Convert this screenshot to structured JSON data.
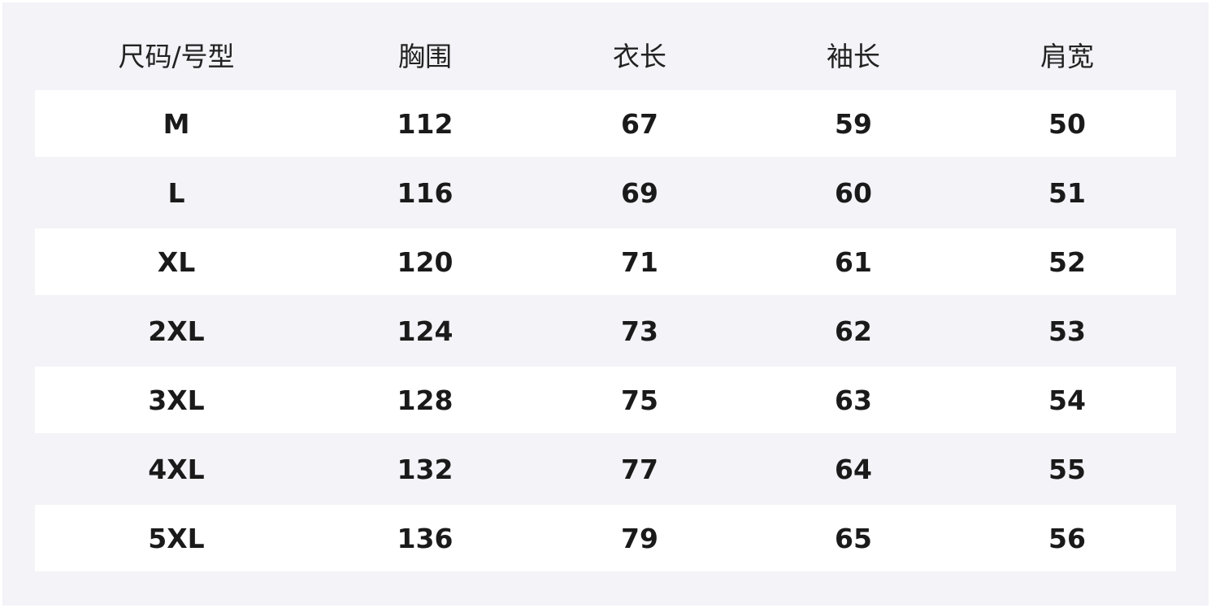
{
  "table": {
    "headers": [
      "尺码/号型",
      "胸围",
      "衣长",
      "袖长",
      "肩宽"
    ],
    "rows": [
      [
        "M",
        "112",
        "67",
        "59",
        "50"
      ],
      [
        "L",
        "116",
        "69",
        "60",
        "51"
      ],
      [
        "XL",
        "120",
        "71",
        "61",
        "52"
      ],
      [
        "2XL",
        "124",
        "73",
        "62",
        "53"
      ],
      [
        "3XL",
        "128",
        "75",
        "63",
        "54"
      ],
      [
        "4XL",
        "132",
        "77",
        "64",
        "55"
      ],
      [
        "5XL",
        "136",
        "79",
        "65",
        "56"
      ]
    ]
  },
  "colors": {
    "background": "#f3f3f8",
    "row_alt": "#ffffff",
    "text": "#1a1a1a"
  }
}
